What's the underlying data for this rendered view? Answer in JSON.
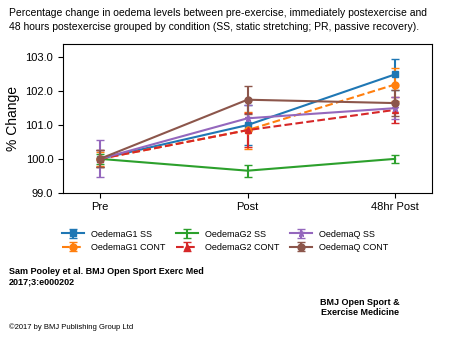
{
  "chart_data": {
    "type": "line",
    "title": "Percentage change in oedema levels between pre-exercise, immediately postexercise and",
    "subtitle": "48 hours postexercise grouped by condition (SS, static stretching; PR, passive recovery).",
    "ylabel": "% Change",
    "categories": [
      "Pre",
      "Post",
      "48hr Post"
    ],
    "ylim": [
      99.0,
      103.4
    ],
    "yticks": [
      {
        "value": 99.0,
        "label": "99.0"
      },
      {
        "value": 100.0,
        "label": "100.0"
      },
      {
        "value": 101.0,
        "label": "101.0"
      },
      {
        "value": 102.0,
        "label": "102.0"
      },
      {
        "value": 103.0,
        "label": "103.0"
      }
    ],
    "legend": "upper center",
    "series": [
      {
        "name": "OedemaG1 SS",
        "values": [
          100.0,
          101.0,
          102.5
        ],
        "errors": [
          0.25,
          0.6,
          0.45
        ],
        "marker": "square",
        "line_style": "solid"
      },
      {
        "name": "OedemaG1 CONT",
        "values": [
          100.0,
          100.85,
          102.2
        ],
        "errors": [
          0.2,
          0.55,
          0.5
        ],
        "marker": "circle",
        "line_style": "dashed"
      },
      {
        "name": "OedemaG2 SS",
        "values": [
          100.0,
          99.65,
          100.0
        ],
        "errors": [
          0.15,
          0.18,
          0.12
        ],
        "marker": "none",
        "line_style": "solid"
      },
      {
        "name": "OedemaG2 CONT",
        "values": [
          100.0,
          100.85,
          101.45
        ],
        "errors": [
          0.25,
          0.5,
          0.38
        ],
        "marker": "triangle",
        "line_style": "dashed"
      },
      {
        "name": "OedemaQ SS",
        "values": [
          100.0,
          101.2,
          101.5
        ],
        "errors": [
          0.55,
          0.38,
          0.32
        ],
        "marker": "star",
        "line_style": "solid"
      },
      {
        "name": "OedemaQ CONT",
        "values": [
          100.0,
          101.75,
          101.65
        ],
        "errors": [
          0.25,
          0.42,
          0.38
        ],
        "marker": "circle",
        "line_style": "solid"
      }
    ],
    "annotations": [
      "Sam Pooley et al. BMJ Open Sport Exerc Med\n2017;3:e000202",
      "©2017 by BMJ Publishing Group Ltd",
      "BMJ Open Sport &\nExercise Medicine"
    ]
  }
}
